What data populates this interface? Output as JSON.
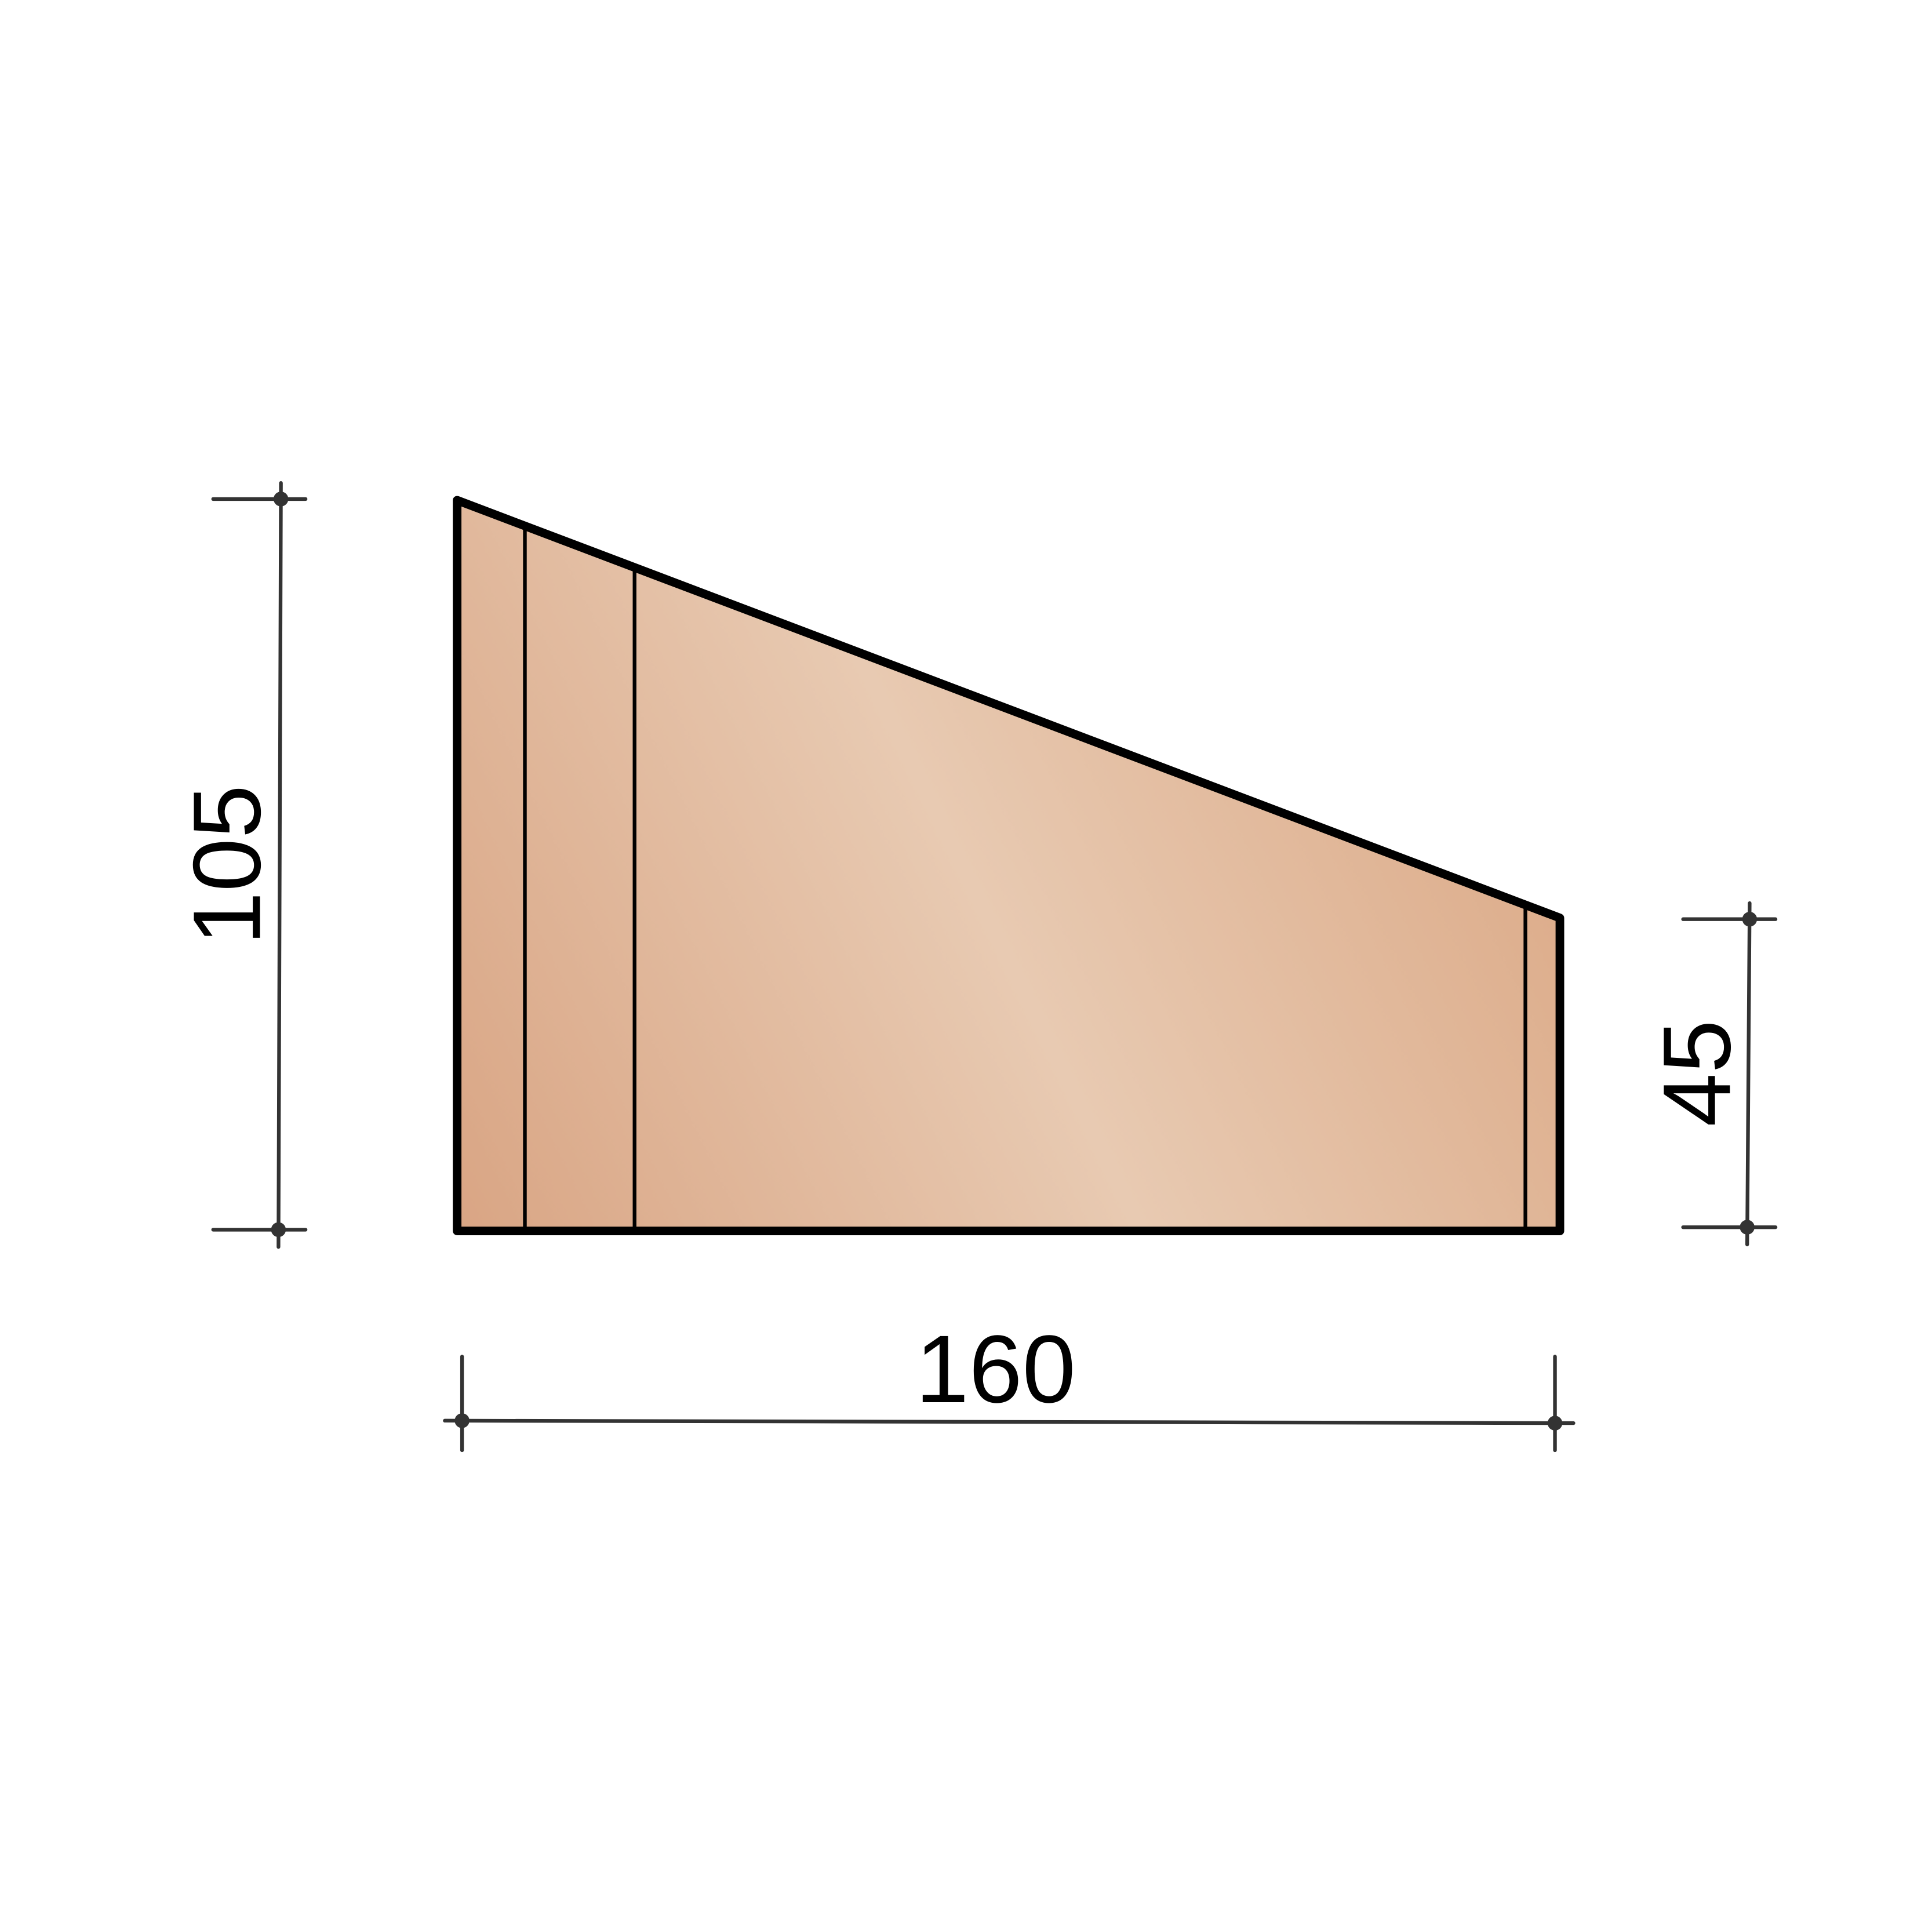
{
  "drawing": {
    "fill_colors": {
      "edge": "#d9a584",
      "center": "#e8cab2"
    },
    "outline_color": "#000000",
    "dimension_color": "#333333",
    "dimensions": {
      "left_height": "105",
      "right_height": "45",
      "bottom_width": "160"
    }
  }
}
